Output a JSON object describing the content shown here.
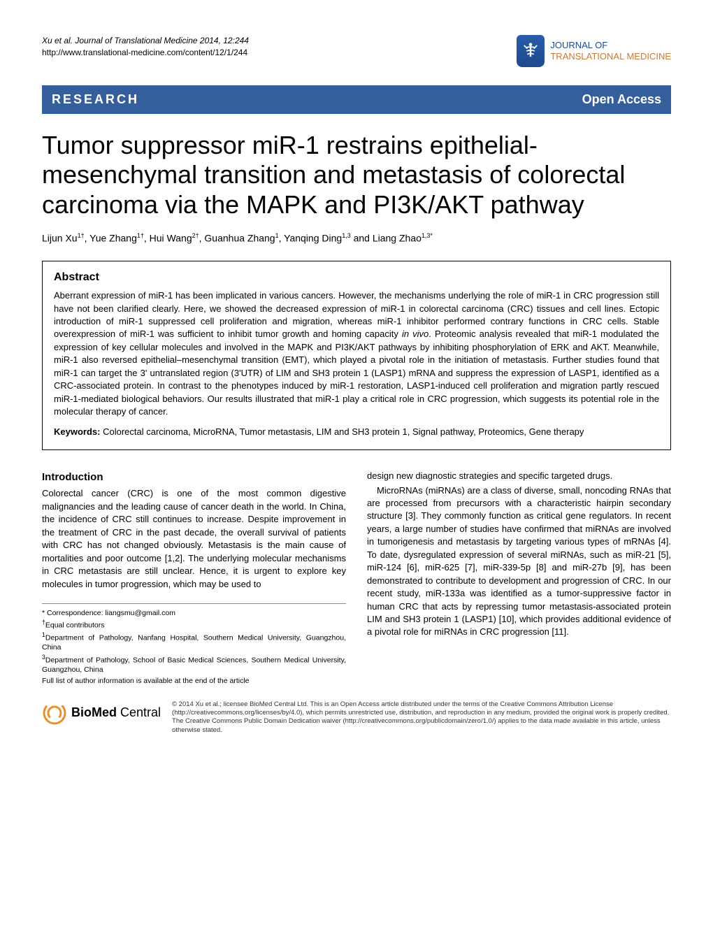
{
  "header": {
    "citation_line1": "Xu et al. Journal of Translational Medicine 2014, 12:244",
    "citation_line2": "http://www.translational-medicine.com/content/12/1/244",
    "journal_line1": "JOURNAL OF",
    "journal_line2": "TRANSLATIONAL MEDICINE"
  },
  "banner": {
    "left": "RESEARCH",
    "right": "Open Access",
    "bg_color": "#355e9c",
    "text_color": "#ffffff"
  },
  "title": "Tumor suppressor miR-1 restrains epithelial-mesenchymal transition and metastasis of colorectal carcinoma via the MAPK and PI3K/AKT pathway",
  "authors_html": "Lijun Xu<sup>1†</sup>, Yue Zhang<sup>1†</sup>, Hui Wang<sup>2†</sup>, Guanhua Zhang<sup>1</sup>, Yanqing Ding<sup>1,3</sup> and Liang Zhao<sup>1,3*</sup>",
  "abstract": {
    "heading": "Abstract",
    "text": "Aberrant expression of miR-1 has been implicated in various cancers. However, the mechanisms underlying the role of miR-1 in CRC progression still have not been clarified clearly. Here, we showed the decreased expression of miR-1 in colorectal carcinoma (CRC) tissues and cell lines. Ectopic introduction of miR-1 suppressed cell proliferation and migration, whereas miR-1 inhibitor performed contrary functions in CRC cells. Stable overexpression of miR-1 was sufficient to inhibit tumor growth and homing capacity in vivo. Proteomic analysis revealed that miR-1 modulated the expression of key cellular molecules and involved in the MAPK and PI3K/AKT pathways by inhibiting phosphorylation of ERK and AKT. Meanwhile, miR-1 also reversed epithelial–mesenchymal transition (EMT), which played a pivotal role in the initiation of metastasis. Further studies found that miR-1 can target the 3' untranslated region (3'UTR) of LIM and SH3 protein 1 (LASP1) mRNA and suppress the expression of LASP1, identified as a CRC-associated protein. In contrast to the phenotypes induced by miR-1 restoration, LASP1-induced cell proliferation and migration partly rescued miR-1-mediated biological behaviors. Our results illustrated that miR-1 play a critical role in CRC progression, which suggests its potential role in the molecular therapy of cancer.",
    "keywords_label": "Keywords:",
    "keywords_text": " Colorectal carcinoma, MicroRNA, Tumor metastasis, LIM and SH3 protein 1, Signal pathway, Proteomics, Gene therapy"
  },
  "introduction": {
    "heading": "Introduction",
    "left_p1": "Colorectal cancer (CRC) is one of the most common digestive malignancies and the leading cause of cancer death in the world. In China, the incidence of CRC still continues to increase. Despite improvement in the treatment of CRC in the past decade, the overall survival of patients with CRC has not changed obviously. Metastasis is the main cause of mortalities and poor outcome [1,2]. The underlying molecular mechanisms in CRC metastasis are still unclear. Hence, it is urgent to explore key molecules in tumor progression, which may be used to",
    "right_p1": "design new diagnostic strategies and specific targeted drugs.",
    "right_p2": "MicroRNAs (miRNAs) are a class of diverse, small, noncoding RNAs that are processed from precursors with a characteristic hairpin secondary structure [3]. They commonly function as critical gene regulators. In recent years, a large number of studies have confirmed that miRNAs are involved in tumorigenesis and metastasis by targeting various types of mRNAs [4]. To date, dysregulated expression of several miRNAs, such as miR-21 [5], miR-124 [6], miR-625 [7], miR-339-5p [8] and miR-27b [9], has been demonstrated to contribute to development and progression of CRC. In our recent study, miR-133a was identified as a tumor-suppressive factor in human CRC that acts by repressing tumor metastasis-associated protein LIM and SH3 protein 1 (LASP1) [10], which provides additional evidence of a pivotal role for miRNAs in CRC progression [11]."
  },
  "footnotes": {
    "correspondence": "* Correspondence: liangsmu@gmail.com",
    "equal": "†Equal contributors",
    "aff1": "1Department of Pathology, Nanfang Hospital, Southern Medical University, Guangzhou, China",
    "aff3": "3Department of Pathology, School of Basic Medical Sciences, Southern Medical University, Guangzhou, China",
    "full": "Full list of author information is available at the end of the article"
  },
  "footer": {
    "bmc_label_bold": "BioMed",
    "bmc_label_light": " Central",
    "license": "© 2014 Xu et al.; licensee BioMed Central Ltd. This is an Open Access article distributed under the terms of the Creative Commons Attribution License (http://creativecommons.org/licenses/by/4.0), which permits unrestricted use, distribution, and reproduction in any medium, provided the original work is properly credited. The Creative Commons Public Domain Dedication waiver (http://creativecommons.org/publicdomain/zero/1.0/) applies to the data made available in this article, unless otherwise stated."
  },
  "colors": {
    "banner_bg": "#355e9c",
    "journal_blue": "#1e4a8c",
    "journal_orange": "#c8792f",
    "bmc_orange": "#e8902a"
  }
}
